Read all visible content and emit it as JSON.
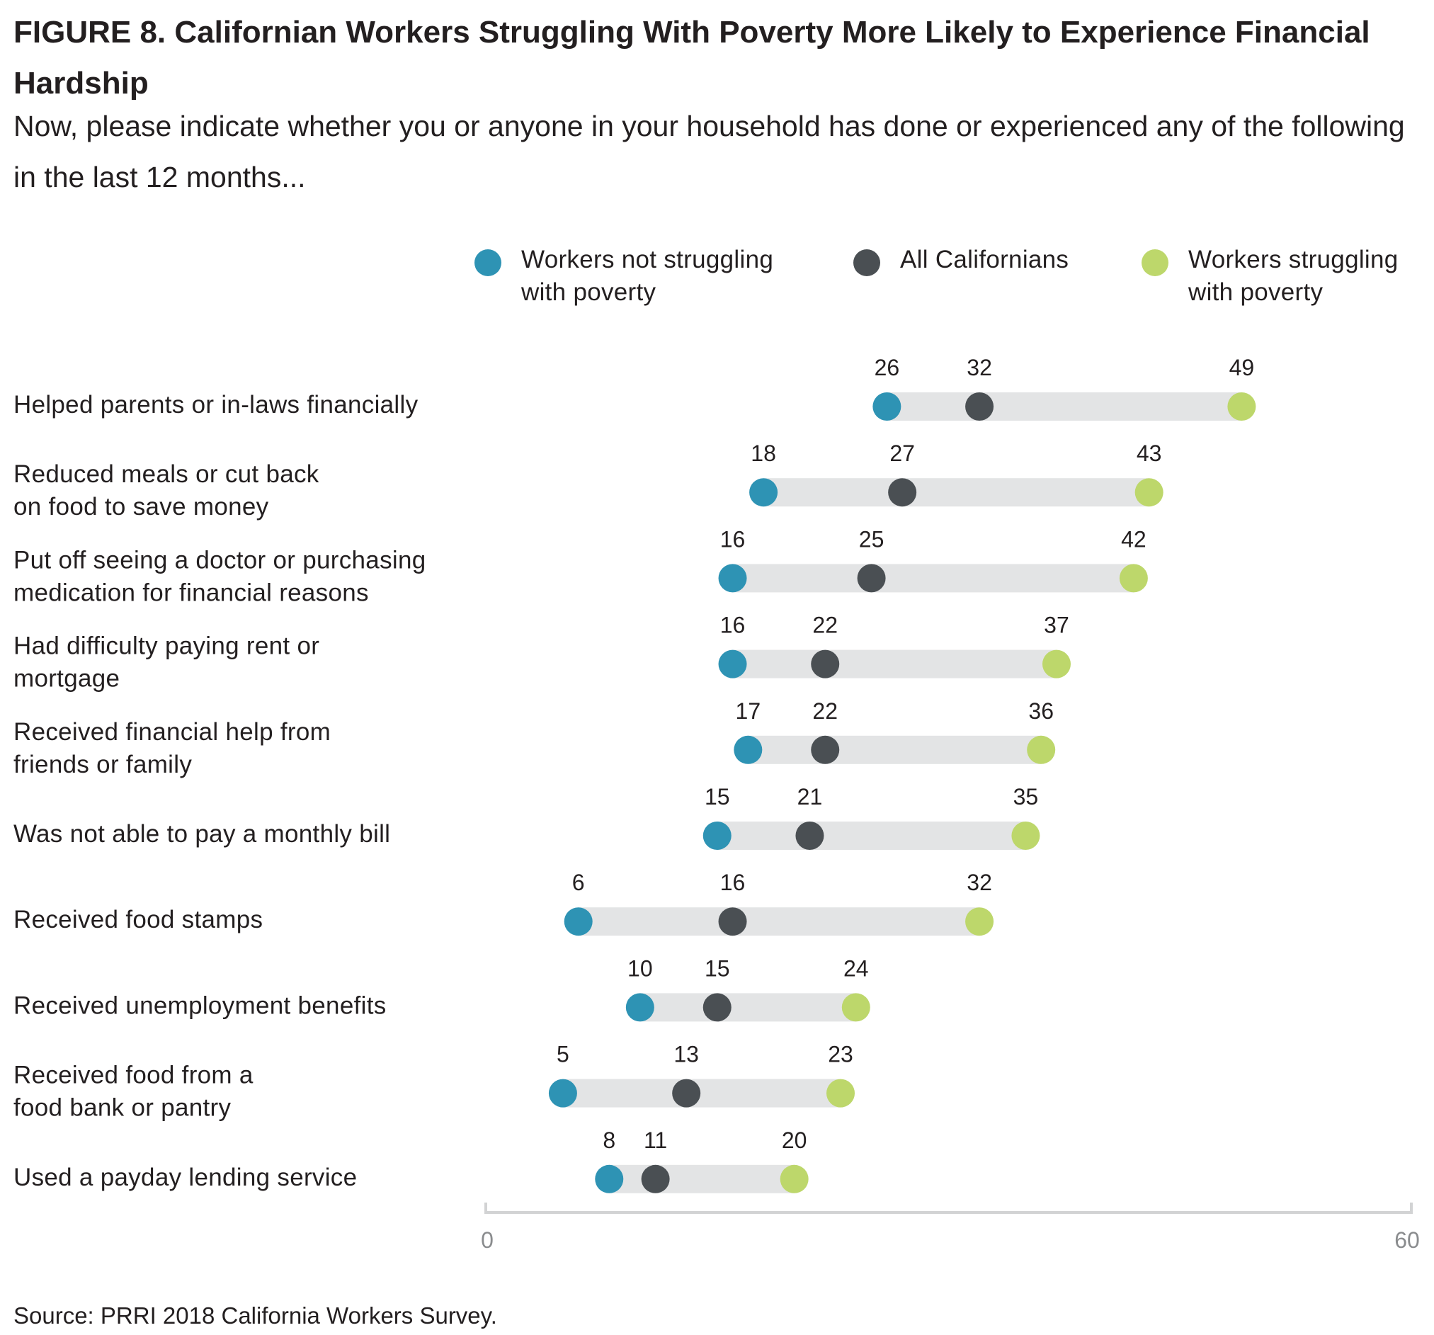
{
  "title": "FIGURE 8. Californian Workers Struggling With Poverty More Likely to Experience Financial Hardship",
  "subtitle": "Now, please indicate whether you or anyone in your household has done or experienced any of the following in the last 12 months...",
  "legend": [
    {
      "label": "Workers not struggling\nwith poverty",
      "color": "#2e93b4"
    },
    {
      "label": "All Californians",
      "color": "#4a4f53"
    },
    {
      "label": "Workers struggling\nwith poverty",
      "color": "#bdd76b"
    }
  ],
  "source": "Source: PRRI 2018 California Workers Survey.",
  "colors": {
    "range_bar": "#e3e4e5",
    "axis": "#d2d3d4",
    "tick_label": "#8a8c8e"
  },
  "chart_data": {
    "type": "dot-range",
    "xlim": [
      0,
      60
    ],
    "x_tick_labels": [
      "0",
      "60"
    ],
    "categories": [
      "Helped parents or in-laws financially",
      "Reduced meals or cut back\non food to save money",
      "Put off seeing a doctor or purchasing\nmedication for financial reasons",
      "Had difficulty paying rent or\nmortgage",
      "Received financial help from\nfriends or family",
      "Was not able to pay a monthly bill",
      "Received food stamps",
      "Received unemployment benefits",
      "Received food from a\nfood bank or pantry",
      "Used a payday lending service"
    ],
    "series": [
      {
        "name": "Workers not struggling with poverty",
        "color": "#2e93b4",
        "values": [
          26,
          18,
          16,
          16,
          17,
          15,
          6,
          10,
          5,
          8
        ]
      },
      {
        "name": "All Californians",
        "color": "#4a4f53",
        "values": [
          32,
          27,
          25,
          22,
          22,
          21,
          16,
          15,
          13,
          11
        ]
      },
      {
        "name": "Workers struggling with poverty",
        "color": "#bdd76b",
        "values": [
          49,
          43,
          42,
          37,
          36,
          35,
          32,
          24,
          23,
          20
        ]
      }
    ]
  }
}
